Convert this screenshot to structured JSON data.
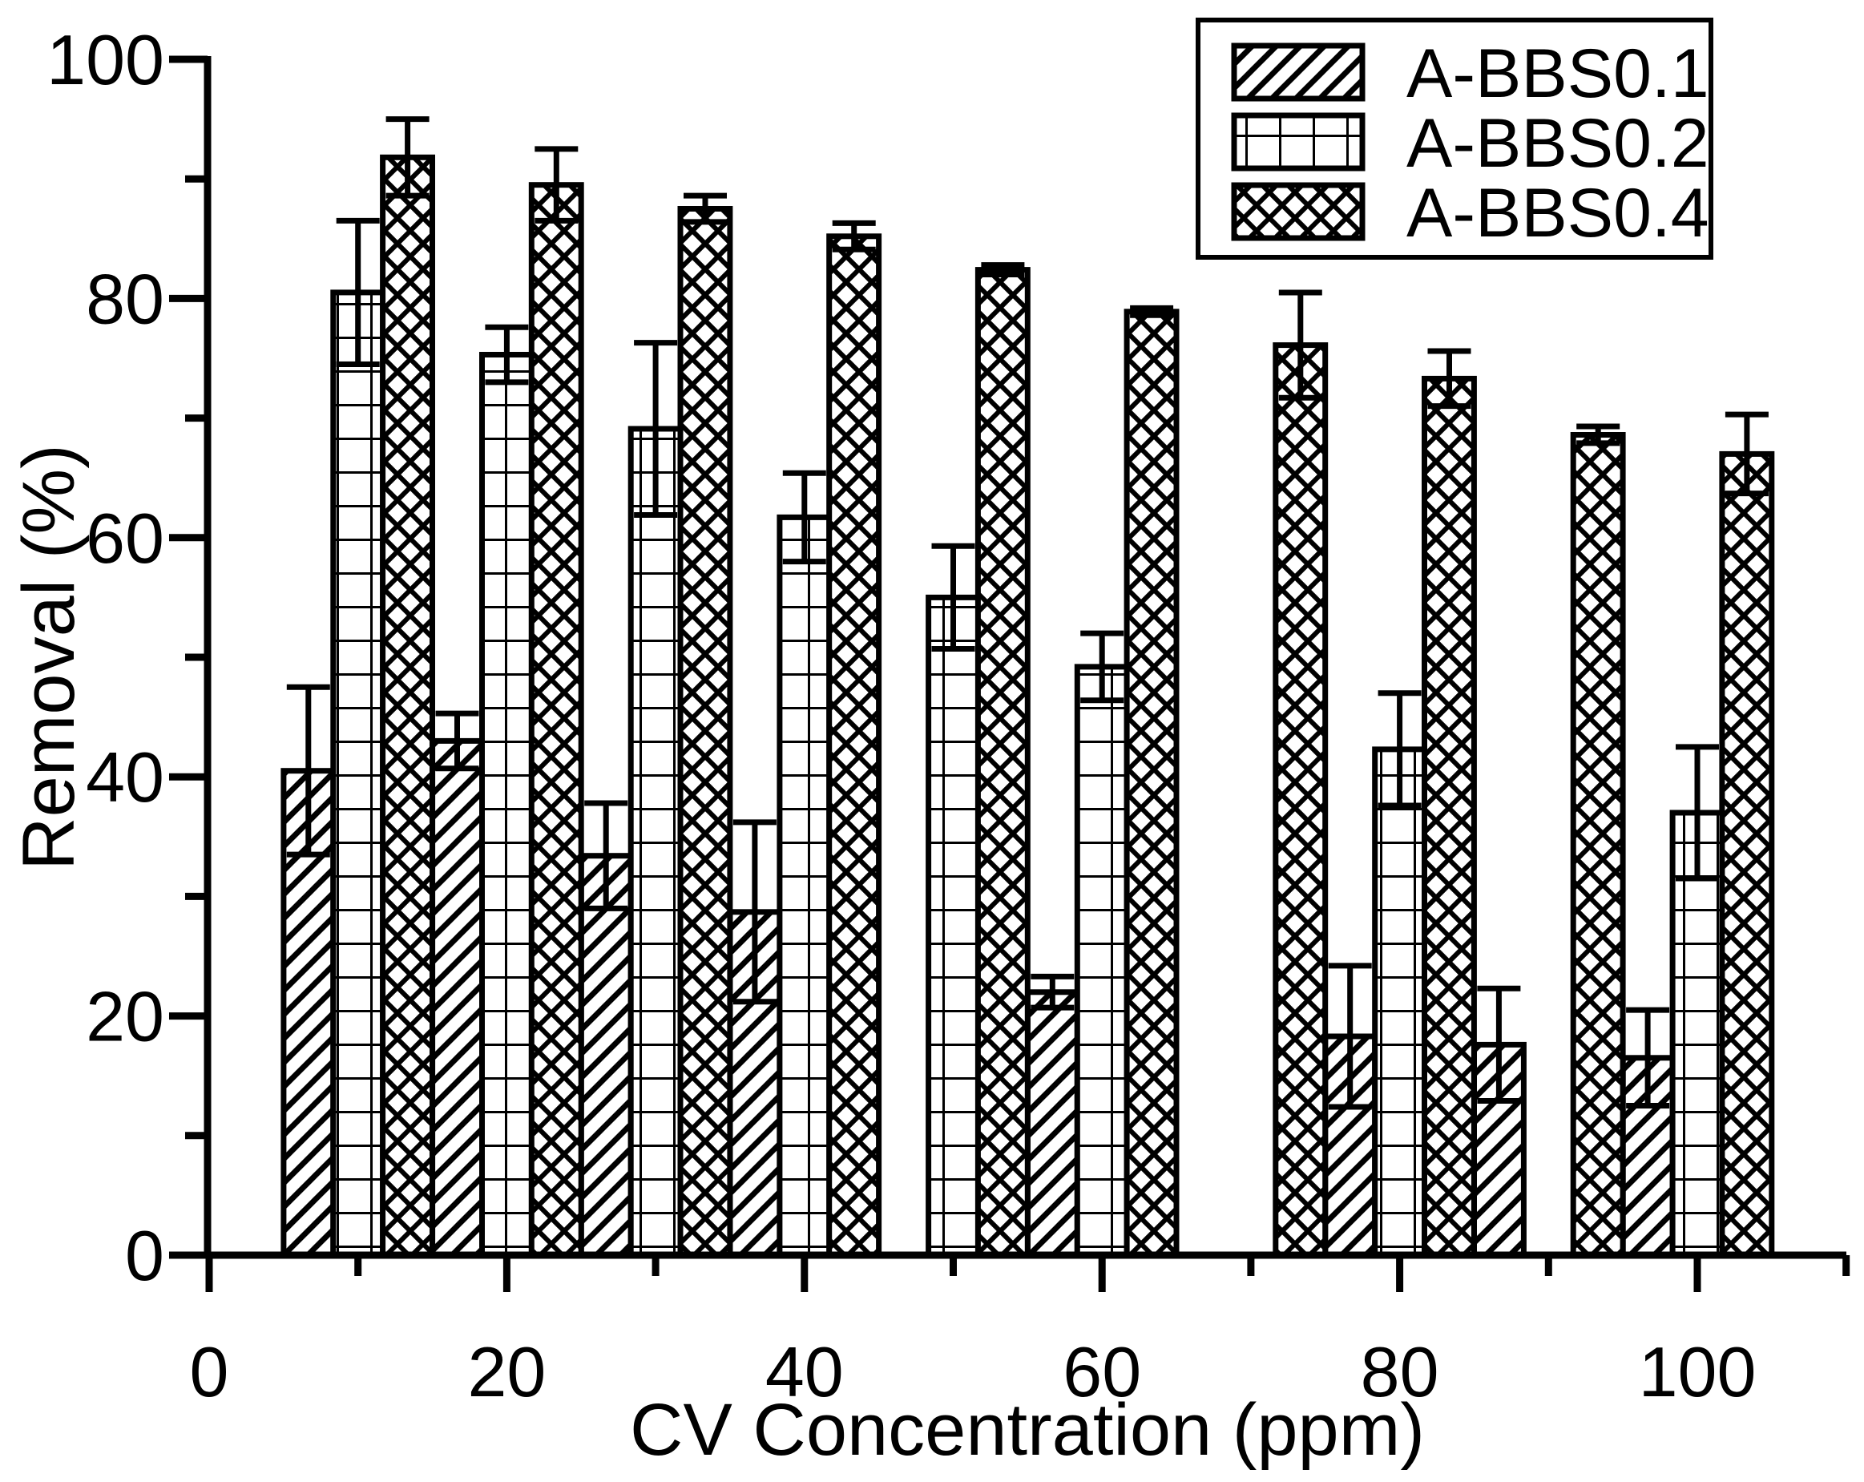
{
  "chart_data": {
    "type": "bar",
    "title": "",
    "xlabel": "CV Concentration (ppm)",
    "ylabel": "Removal (%)",
    "x": [
      10,
      20,
      30,
      40,
      50,
      60,
      70,
      80,
      90,
      100
    ],
    "series": [
      {
        "name": "A-BBS0.1",
        "pattern": "diagonal-hatch",
        "values": [
          40.5,
          43.0,
          33.4,
          28.7,
          null,
          22.0,
          null,
          18.3,
          17.6,
          16.5
        ],
        "errors": [
          7.0,
          2.3,
          4.4,
          7.5,
          null,
          1.3,
          null,
          5.9,
          4.7,
          4.0
        ]
      },
      {
        "name": "A-BBS0.2",
        "pattern": "grid-hatch",
        "values": [
          80.5,
          75.3,
          69.1,
          61.7,
          55.0,
          49.2,
          null,
          42.3,
          null,
          37.0
        ],
        "errors": [
          6.0,
          2.3,
          7.2,
          3.7,
          4.3,
          2.8,
          null,
          4.7,
          null,
          5.5
        ]
      },
      {
        "name": "A-BBS0.4",
        "pattern": "cross-hatch",
        "values": [
          91.8,
          89.5,
          87.5,
          85.2,
          82.4,
          78.9,
          76.1,
          73.3,
          68.6,
          67.0
        ],
        "errors": [
          3.2,
          3.0,
          1.1,
          1.1,
          0.4,
          0.3,
          4.4,
          2.3,
          0.7,
          3.3
        ]
      }
    ],
    "xlim": [
      0,
      110
    ],
    "ylim": [
      0,
      100
    ],
    "x_major_ticks": [
      0,
      20,
      40,
      60,
      80,
      100
    ],
    "x_minor_ticks": [
      10,
      30,
      50,
      70,
      90,
      110
    ],
    "y_major_ticks": [
      0,
      20,
      40,
      60,
      80,
      100
    ],
    "y_minor_ticks": [
      10,
      30,
      50,
      70,
      90
    ],
    "bar_width_ppm": 3.3333,
    "grid": "off",
    "legend_position": "top-right",
    "colors": {
      "foreground": "#000000",
      "background": "#ffffff"
    }
  }
}
